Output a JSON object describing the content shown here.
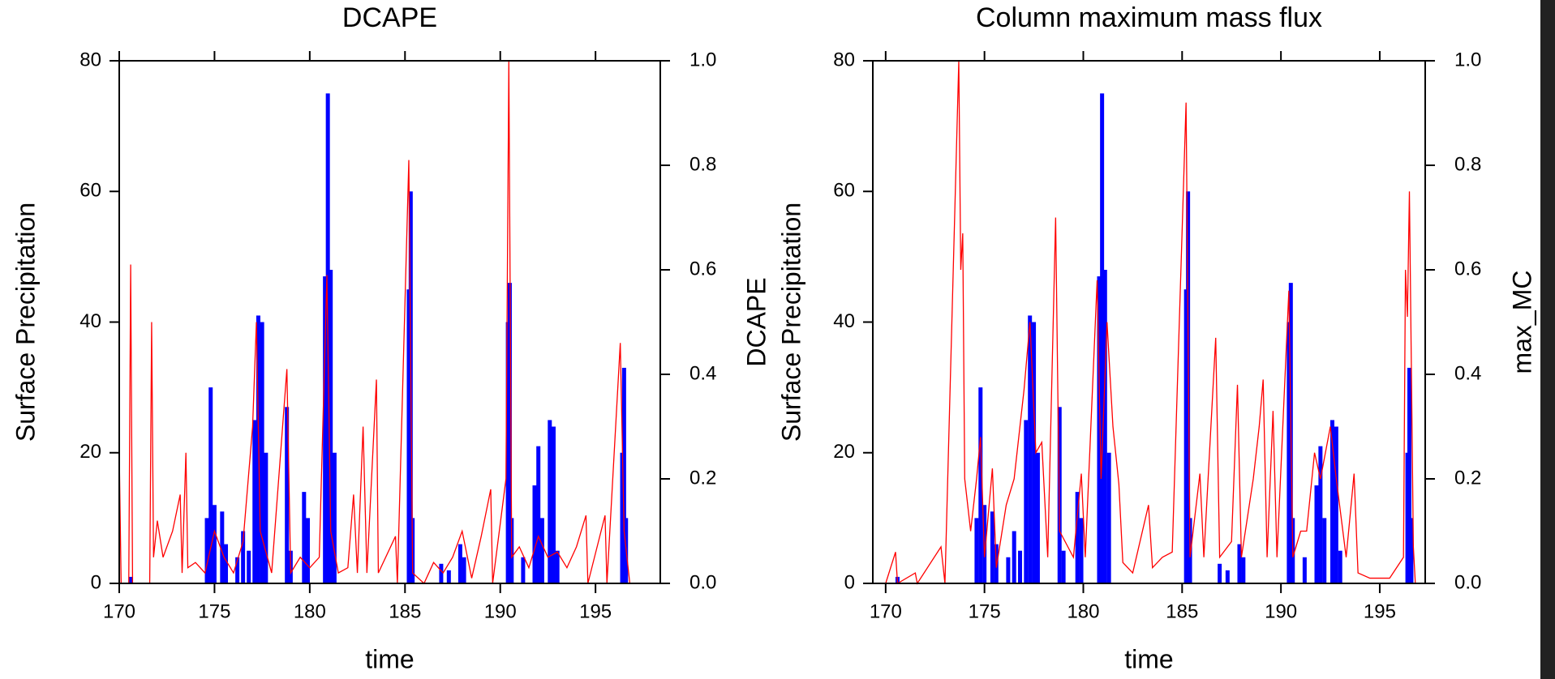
{
  "chart_data": [
    {
      "type": "combo",
      "title": "DCAPE",
      "xlabel": "time",
      "ylabel": "Surface Precipitation",
      "y2label": "DCAPE",
      "xlim": [
        170,
        198.4
      ],
      "xticks": [
        170,
        175,
        180,
        185,
        190,
        195
      ],
      "ylim": [
        0,
        80
      ],
      "yticks": [
        0,
        20,
        40,
        60,
        80
      ],
      "y2lim": [
        0,
        1
      ],
      "y2ticks": [
        {
          "value": 0,
          "label": "0.0"
        },
        0.2,
        0.4,
        0.6,
        0.8,
        {
          "value": 1,
          "label": "1.0"
        }
      ],
      "series": [
        {
          "type": "bar",
          "color": "#0000ff",
          "x": [
            170.6,
            174.6,
            174.8,
            175.0,
            175.4,
            175.6,
            176.2,
            176.5,
            176.8,
            177.1,
            177.3,
            177.5,
            177.7,
            178.8,
            179.0,
            179.7,
            179.9,
            180.8,
            180.95,
            181.1,
            181.3,
            185.2,
            185.3,
            185.4,
            186.9,
            187.3,
            187.9,
            188.1,
            190.4,
            190.5,
            190.6,
            191.2,
            191.8,
            192.0,
            192.2,
            192.6,
            192.8,
            193.0,
            196.4,
            196.5,
            196.6
          ],
          "values": [
            1,
            10,
            30,
            12,
            11,
            6,
            4,
            8,
            5,
            25,
            41,
            40,
            20,
            27,
            5,
            14,
            10,
            47,
            75,
            48,
            20,
            45,
            60,
            10,
            3,
            2,
            6,
            4,
            40,
            46,
            10,
            4,
            15,
            21,
            10,
            25,
            24,
            5,
            20,
            33,
            10
          ]
        },
        {
          "type": "line",
          "axis": "y2",
          "color": "#ff0000",
          "x": [
            170,
            170.1,
            170.5,
            170.6,
            170.7,
            171.6,
            171.7,
            171.8,
            172.0,
            172.3,
            172.8,
            173.2,
            173.3,
            173.5,
            173.6,
            174.0,
            174.5,
            175.0,
            175.5,
            176.0,
            176.5,
            177.0,
            177.2,
            177.4,
            178.0,
            178.8,
            179.0,
            179.5,
            180.0,
            180.5,
            180.9,
            181.1,
            181.5,
            182.0,
            182.3,
            182.5,
            182.8,
            183.0,
            183.5,
            183.6,
            184.5,
            184.6,
            185.2,
            185.4,
            186.0,
            186.5,
            187.0,
            187.5,
            188.0,
            188.5,
            189.0,
            189.5,
            189.6,
            190.3,
            190.45,
            190.6,
            191.0,
            191.5,
            192.0,
            192.5,
            193.0,
            193.5,
            194.0,
            194.5,
            194.6,
            195.5,
            195.6,
            196.3,
            196.5,
            196.8
          ],
          "values": [
            0.25,
            0,
            0,
            0.61,
            0,
            0,
            0.5,
            0.05,
            0.12,
            0.05,
            0.1,
            0.17,
            0.02,
            0.25,
            0.03,
            0.04,
            0.02,
            0.1,
            0.05,
            0.02,
            0.08,
            0.3,
            0.5,
            0.1,
            0.02,
            0.41,
            0.02,
            0.05,
            0.03,
            0.05,
            0.59,
            0.1,
            0.02,
            0.03,
            0.17,
            0.02,
            0.3,
            0.02,
            0.39,
            0.02,
            0.09,
            0,
            0.81,
            0.02,
            0,
            0.04,
            0.02,
            0.05,
            0.1,
            0.01,
            0.09,
            0.18,
            0,
            0.2,
            1.0,
            0.05,
            0.07,
            0.03,
            0.09,
            0.05,
            0.06,
            0.03,
            0.07,
            0.13,
            0,
            0.13,
            0,
            0.46,
            0.1,
            0
          ]
        }
      ]
    },
    {
      "type": "combo",
      "title": "Column maximum mass flux",
      "xlabel": "time",
      "ylabel": "Surface Precipitation",
      "y2label": "max_MC",
      "xlim": [
        169.35,
        197.3
      ],
      "xticks": [
        170,
        175,
        180,
        185,
        190,
        195
      ],
      "ylim": [
        0,
        80
      ],
      "yticks": [
        0,
        20,
        40,
        60,
        80
      ],
      "y2lim": [
        0,
        1
      ],
      "y2ticks": [
        {
          "value": 0,
          "label": "0.0"
        },
        0.2,
        0.4,
        0.6,
        0.8,
        {
          "value": 1,
          "label": "1.0"
        }
      ],
      "series": [
        {
          "type": "bar",
          "color": "#0000ff",
          "x": [
            170.6,
            174.6,
            174.8,
            175.0,
            175.4,
            175.6,
            176.2,
            176.5,
            176.8,
            177.1,
            177.3,
            177.5,
            177.7,
            178.8,
            179.0,
            179.7,
            179.9,
            180.8,
            180.95,
            181.1,
            181.3,
            185.2,
            185.3,
            185.4,
            186.9,
            187.3,
            187.9,
            188.1,
            190.4,
            190.5,
            190.6,
            191.2,
            191.8,
            192.0,
            192.2,
            192.6,
            192.8,
            193.0,
            196.4,
            196.5,
            196.6
          ],
          "values": [
            1,
            10,
            30,
            12,
            11,
            6,
            4,
            8,
            5,
            25,
            41,
            40,
            20,
            27,
            5,
            14,
            10,
            47,
            75,
            48,
            20,
            45,
            60,
            10,
            3,
            2,
            6,
            4,
            40,
            46,
            10,
            4,
            15,
            21,
            10,
            25,
            24,
            5,
            20,
            33,
            10
          ]
        },
        {
          "type": "line",
          "axis": "y2",
          "color": "#ff0000",
          "x": [
            170,
            170.5,
            170.6,
            171.5,
            171.6,
            172.8,
            173.0,
            173.7,
            173.8,
            173.9,
            174.0,
            174.3,
            174.6,
            174.8,
            175.0,
            175.4,
            175.6,
            176.1,
            176.5,
            177.0,
            177.3,
            177.6,
            177.9,
            178.2,
            178.6,
            178.8,
            179.5,
            179.9,
            180.1,
            180.7,
            180.9,
            181.2,
            181.5,
            181.8,
            182.0,
            182.5,
            183.3,
            183.5,
            184.0,
            184.5,
            185.2,
            185.4,
            185.9,
            186.1,
            186.7,
            186.9,
            187.5,
            187.8,
            188.0,
            188.6,
            188.9,
            189.1,
            189.3,
            189.6,
            189.8,
            190.4,
            190.6,
            191.0,
            191.3,
            191.7,
            192.0,
            192.5,
            192.8,
            193.3,
            193.7,
            193.9,
            194.5,
            195.5,
            196.2,
            196.3,
            196.4,
            196.5,
            196.7,
            196.8
          ],
          "values": [
            0,
            0.06,
            0,
            0.02,
            0,
            0.07,
            0,
            1.0,
            0.6,
            0.67,
            0.2,
            0.1,
            0.2,
            0.28,
            0.05,
            0.22,
            0.03,
            0.15,
            0.2,
            0.37,
            0.5,
            0.25,
            0.27,
            0.05,
            0.7,
            0.1,
            0.05,
            0.21,
            0.05,
            0.58,
            0.2,
            0.5,
            0.3,
            0.19,
            0.04,
            0.02,
            0.15,
            0.03,
            0.05,
            0.06,
            0.92,
            0.05,
            0.21,
            0.05,
            0.47,
            0.05,
            0.08,
            0.38,
            0.05,
            0.2,
            0.3,
            0.39,
            0.05,
            0.33,
            0.05,
            0.56,
            0.05,
            0.1,
            0.1,
            0.25,
            0.2,
            0.3,
            0.2,
            0.05,
            0.21,
            0.02,
            0.01,
            0.01,
            0.05,
            0.6,
            0.51,
            0.75,
            0.07,
            0
          ]
        }
      ]
    }
  ]
}
